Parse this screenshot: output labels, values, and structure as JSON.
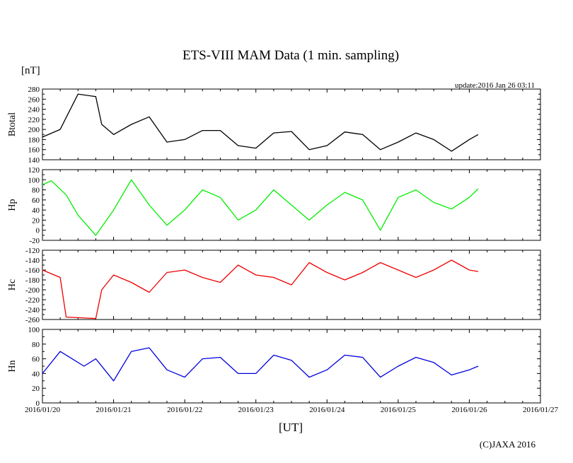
{
  "chart_data": {
    "type": "line",
    "title": "ETS-VIII MAM Data (1 min. sampling)",
    "unit_label": "[nT]",
    "xlabel": "[UT]",
    "update_text": "update:2016 Jan 26 03:11",
    "credit": "(C)JAXA 2016",
    "x_ticks": [
      "2016/01/20",
      "2016/01/21",
      "2016/01/22",
      "2016/01/23",
      "2016/01/24",
      "2016/01/25",
      "2016/01/26",
      "2016/01/27"
    ],
    "xlim": [
      "2016/01/20 00:00",
      "2016/01/27 00:00"
    ],
    "grid": false,
    "panels": [
      {
        "label": "Btotal",
        "color": "#000000",
        "ylim": [
          140,
          280
        ],
        "yticks": [
          140,
          160,
          180,
          200,
          220,
          240,
          260,
          280
        ],
        "points": [
          [
            "2016/01/20 00:00",
            185
          ],
          [
            "2016/01/20 06:00",
            200
          ],
          [
            "2016/01/20 12:00",
            270
          ],
          [
            "2016/01/20 18:00",
            265
          ],
          [
            "2016/01/20 20:00",
            210
          ],
          [
            "2016/01/21 00:00",
            190
          ],
          [
            "2016/01/21 06:00",
            210
          ],
          [
            "2016/01/21 12:00",
            225
          ],
          [
            "2016/01/21 18:00",
            175
          ],
          [
            "2016/01/22 00:00",
            180
          ],
          [
            "2016/01/22 06:00",
            198
          ],
          [
            "2016/01/22 12:00",
            198
          ],
          [
            "2016/01/22 18:00",
            168
          ],
          [
            "2016/01/23 00:00",
            163
          ],
          [
            "2016/01/23 06:00",
            193
          ],
          [
            "2016/01/23 12:00",
            196
          ],
          [
            "2016/01/23 18:00",
            160
          ],
          [
            "2016/01/24 00:00",
            168
          ],
          [
            "2016/01/24 06:00",
            195
          ],
          [
            "2016/01/24 12:00",
            190
          ],
          [
            "2016/01/24 18:00",
            160
          ],
          [
            "2016/01/25 00:00",
            175
          ],
          [
            "2016/01/25 06:00",
            193
          ],
          [
            "2016/01/25 12:00",
            180
          ],
          [
            "2016/01/25 18:00",
            157
          ],
          [
            "2016/01/26 00:00",
            180
          ],
          [
            "2016/01/26 03:00",
            190
          ]
        ]
      },
      {
        "label": "Hp",
        "color": "#00ee00",
        "ylim": [
          -20,
          120
        ],
        "yticks": [
          -20,
          0,
          20,
          40,
          60,
          80,
          100,
          120
        ],
        "points": [
          [
            "2016/01/20 00:00",
            90
          ],
          [
            "2016/01/20 03:00",
            98
          ],
          [
            "2016/01/20 08:00",
            70
          ],
          [
            "2016/01/20 12:00",
            30
          ],
          [
            "2016/01/20 18:00",
            -10
          ],
          [
            "2016/01/21 00:00",
            40
          ],
          [
            "2016/01/21 06:00",
            100
          ],
          [
            "2016/01/21 12:00",
            50
          ],
          [
            "2016/01/21 18:00",
            10
          ],
          [
            "2016/01/22 00:00",
            40
          ],
          [
            "2016/01/22 06:00",
            80
          ],
          [
            "2016/01/22 12:00",
            65
          ],
          [
            "2016/01/22 18:00",
            20
          ],
          [
            "2016/01/23 00:00",
            40
          ],
          [
            "2016/01/23 06:00",
            80
          ],
          [
            "2016/01/23 12:00",
            50
          ],
          [
            "2016/01/23 18:00",
            20
          ],
          [
            "2016/01/24 00:00",
            50
          ],
          [
            "2016/01/24 06:00",
            75
          ],
          [
            "2016/01/24 12:00",
            60
          ],
          [
            "2016/01/24 18:00",
            0
          ],
          [
            "2016/01/25 00:00",
            65
          ],
          [
            "2016/01/25 06:00",
            80
          ],
          [
            "2016/01/25 12:00",
            55
          ],
          [
            "2016/01/25 18:00",
            42
          ],
          [
            "2016/01/26 00:00",
            65
          ],
          [
            "2016/01/26 03:00",
            82
          ]
        ]
      },
      {
        "label": "Hc",
        "color": "#ee0000",
        "ylim": [
          -260,
          -120
        ],
        "yticks": [
          -260,
          -240,
          -220,
          -200,
          -180,
          -160,
          -140,
          -120
        ],
        "points": [
          [
            "2016/01/20 00:00",
            -160
          ],
          [
            "2016/01/20 06:00",
            -175
          ],
          [
            "2016/01/20 08:00",
            -255
          ],
          [
            "2016/01/20 18:00",
            -258
          ],
          [
            "2016/01/20 20:00",
            -200
          ],
          [
            "2016/01/21 00:00",
            -170
          ],
          [
            "2016/01/21 06:00",
            -185
          ],
          [
            "2016/01/21 12:00",
            -205
          ],
          [
            "2016/01/21 18:00",
            -165
          ],
          [
            "2016/01/22 00:00",
            -160
          ],
          [
            "2016/01/22 06:00",
            -175
          ],
          [
            "2016/01/22 12:00",
            -185
          ],
          [
            "2016/01/22 18:00",
            -150
          ],
          [
            "2016/01/23 00:00",
            -170
          ],
          [
            "2016/01/23 06:00",
            -175
          ],
          [
            "2016/01/23 12:00",
            -190
          ],
          [
            "2016/01/23 18:00",
            -145
          ],
          [
            "2016/01/24 00:00",
            -165
          ],
          [
            "2016/01/24 06:00",
            -180
          ],
          [
            "2016/01/24 12:00",
            -165
          ],
          [
            "2016/01/24 18:00",
            -145
          ],
          [
            "2016/01/25 00:00",
            -160
          ],
          [
            "2016/01/25 06:00",
            -175
          ],
          [
            "2016/01/25 12:00",
            -160
          ],
          [
            "2016/01/25 18:00",
            -140
          ],
          [
            "2016/01/26 00:00",
            -160
          ],
          [
            "2016/01/26 03:00",
            -163
          ]
        ]
      },
      {
        "label": "Hn",
        "color": "#0000dd",
        "ylim": [
          0,
          100
        ],
        "yticks": [
          0,
          20,
          40,
          60,
          80,
          100
        ],
        "points": [
          [
            "2016/01/20 00:00",
            40
          ],
          [
            "2016/01/20 06:00",
            70
          ],
          [
            "2016/01/20 10:00",
            60
          ],
          [
            "2016/01/20 14:00",
            50
          ],
          [
            "2016/01/20 18:00",
            60
          ],
          [
            "2016/01/21 00:00",
            30
          ],
          [
            "2016/01/21 06:00",
            70
          ],
          [
            "2016/01/21 12:00",
            75
          ],
          [
            "2016/01/21 18:00",
            45
          ],
          [
            "2016/01/22 00:00",
            35
          ],
          [
            "2016/01/22 06:00",
            60
          ],
          [
            "2016/01/22 12:00",
            62
          ],
          [
            "2016/01/22 18:00",
            40
          ],
          [
            "2016/01/23 00:00",
            40
          ],
          [
            "2016/01/23 06:00",
            65
          ],
          [
            "2016/01/23 12:00",
            58
          ],
          [
            "2016/01/23 18:00",
            35
          ],
          [
            "2016/01/24 00:00",
            45
          ],
          [
            "2016/01/24 06:00",
            65
          ],
          [
            "2016/01/24 12:00",
            62
          ],
          [
            "2016/01/24 18:00",
            35
          ],
          [
            "2016/01/25 00:00",
            50
          ],
          [
            "2016/01/25 06:00",
            62
          ],
          [
            "2016/01/25 12:00",
            55
          ],
          [
            "2016/01/25 18:00",
            38
          ],
          [
            "2016/01/26 00:00",
            45
          ],
          [
            "2016/01/26 03:00",
            50
          ]
        ]
      }
    ]
  }
}
